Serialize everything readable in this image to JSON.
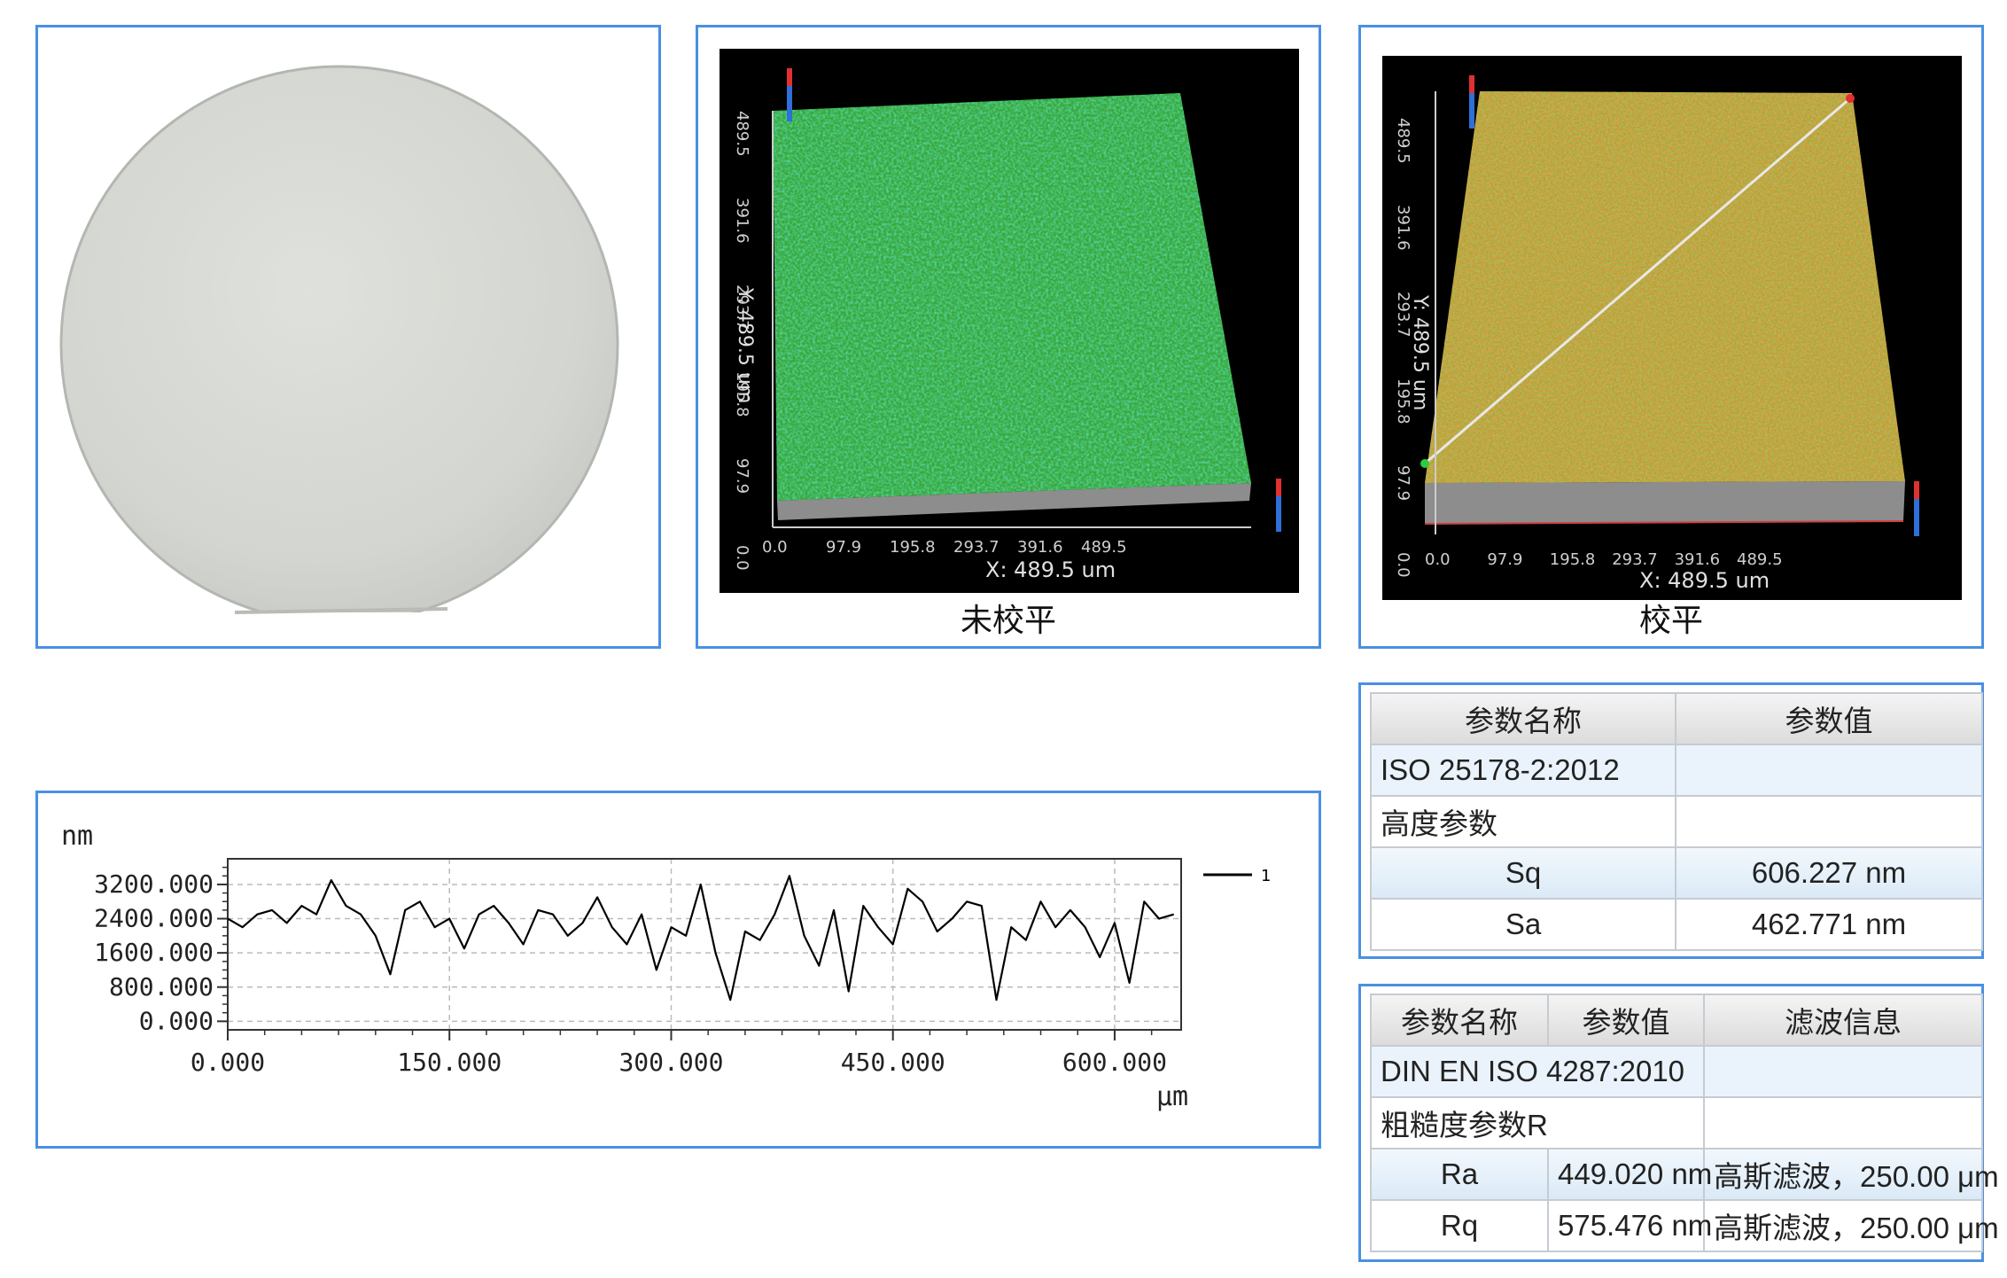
{
  "captions": {
    "unleveled": "未校平",
    "leveled": "校平"
  },
  "plot_unleveled": {
    "y_axis_label": "Y: 489.5 um",
    "x_axis_label": "X: 489.5 um",
    "y_ticks": [
      "0.0",
      "97.9",
      "195.8",
      "293.7",
      "391.6",
      "489.5"
    ],
    "x_ticks": [
      "0.0",
      "97.9",
      "195.8",
      "293.7",
      "391.6",
      "489.5"
    ]
  },
  "plot_leveled": {
    "y_axis_label": "Y: 489.5 um",
    "x_axis_label": "X: 489.5 um",
    "y_ticks": [
      "0.0",
      "97.9",
      "195.8",
      "293.7",
      "391.6",
      "489.5"
    ],
    "x_ticks": [
      "0.0",
      "97.9",
      "195.8",
      "293.7",
      "391.6",
      "489.5"
    ]
  },
  "chart_data": {
    "type": "line",
    "ylabel": "nm",
    "xlabel": "μm",
    "y_ticks": [
      "3200.000",
      "2400.000",
      "1600.000",
      "800.000",
      "0.000"
    ],
    "y_tick_values": [
      3200,
      2400,
      1600,
      800,
      0
    ],
    "x_ticks": [
      "0.000",
      "150.000",
      "300.000",
      "450.000",
      "600.000"
    ],
    "x_tick_values": [
      0,
      150,
      300,
      450,
      600
    ],
    "xlim": [
      0,
      645
    ],
    "ylim": [
      -200,
      3800
    ],
    "grid": true,
    "legend": "top-right",
    "series": [
      {
        "name": "1",
        "x": [
          0,
          10,
          20,
          30,
          40,
          50,
          60,
          70,
          80,
          90,
          100,
          110,
          120,
          130,
          140,
          150,
          160,
          170,
          180,
          190,
          200,
          210,
          220,
          230,
          240,
          250,
          260,
          270,
          280,
          290,
          300,
          310,
          320,
          330,
          340,
          350,
          360,
          370,
          380,
          390,
          400,
          410,
          420,
          430,
          440,
          450,
          460,
          470,
          480,
          490,
          500,
          510,
          520,
          530,
          540,
          550,
          560,
          570,
          580,
          590,
          600,
          610,
          620,
          630,
          640
        ],
        "y": [
          2400,
          2200,
          2500,
          2600,
          2300,
          2700,
          2500,
          3300,
          2700,
          2500,
          2000,
          1100,
          2600,
          2800,
          2200,
          2400,
          1700,
          2500,
          2700,
          2300,
          1800,
          2600,
          2500,
          2000,
          2300,
          2900,
          2200,
          1800,
          2500,
          1200,
          2200,
          2000,
          3200,
          1600,
          500,
          2100,
          1900,
          2500,
          3400,
          2000,
          1300,
          2600,
          700,
          2700,
          2200,
          1800,
          3100,
          2800,
          2100,
          2400,
          2800,
          2700,
          500,
          2200,
          1900,
          2800,
          2200,
          2600,
          2200,
          1500,
          2300,
          900,
          2800,
          2400,
          2500
        ]
      }
    ]
  },
  "table1": {
    "headers": [
      "参数名称",
      "参数值"
    ],
    "rows": [
      [
        "ISO 25178-2:2012",
        ""
      ],
      [
        "高度参数",
        ""
      ],
      [
        "Sq",
        "606.227 nm"
      ],
      [
        "Sa",
        "462.771 nm"
      ]
    ]
  },
  "table2": {
    "headers": [
      "参数名称",
      "参数值",
      "滤波信息"
    ],
    "rows": [
      [
        "DIN EN ISO 4287:2010",
        "",
        ""
      ],
      [
        "粗糙度参数R",
        "",
        ""
      ],
      [
        "Ra",
        "449.020 nm",
        "高斯滤波，250.00 μm"
      ],
      [
        "Rq",
        "575.476 nm",
        "高斯滤波，250.00 μm"
      ]
    ]
  },
  "colors": {
    "panel_border": "#4a90e2",
    "surface_unleveled": "#3aa838",
    "surface_leveled": "#b9a132"
  }
}
